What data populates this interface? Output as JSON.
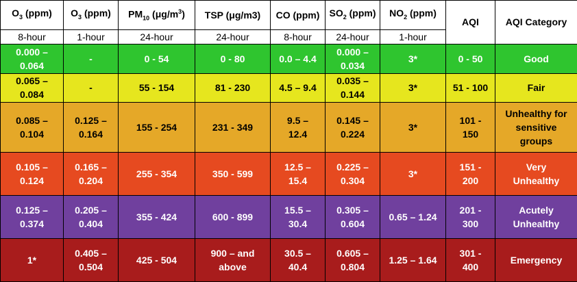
{
  "colors": {
    "good": "#2fc52f",
    "fair": "#e6e61e",
    "sensitive": "#e5a828",
    "very_unhealthy": "#e64a20",
    "acutely_unhealthy": "#70409e",
    "emergency": "#a81c1c"
  },
  "table": {
    "headers": [
      {
        "base": "O",
        "sub": "3",
        "sup": "",
        "rest": " (ppm)"
      },
      {
        "base": "O",
        "sub": "3",
        "sup": "",
        "rest": " (ppm)"
      },
      {
        "base": "PM",
        "sub": "10",
        "sup": "3",
        "rest": " (μg/m",
        "tail": ")"
      },
      {
        "base": "TSP (μg/m3)",
        "sub": "",
        "sup": "",
        "rest": ""
      },
      {
        "base": "CO (ppm)",
        "sub": "",
        "sup": "",
        "rest": ""
      },
      {
        "base": "SO",
        "sub": "2",
        "sup": "",
        "rest": " (ppm)"
      },
      {
        "base": "NO",
        "sub": "2",
        "sup": "",
        "rest": " (ppm)"
      },
      {
        "base": "AQI",
        "sub": "",
        "sup": "",
        "rest": ""
      },
      {
        "base": "AQI Category",
        "sub": "",
        "sup": "",
        "rest": ""
      }
    ],
    "averaging": [
      "8-hour",
      "1-hour",
      "24-hour",
      "24-hour",
      "8-hour",
      "24-hour",
      "1-hour"
    ],
    "rows": [
      {
        "color": "#2fc52f",
        "text_color": "#ffffff",
        "height": 42,
        "cells": [
          [
            "0.000 –",
            "0.064"
          ],
          [
            "-"
          ],
          [
            "0 - 54"
          ],
          [
            "0 - 80"
          ],
          [
            "0.0 – 4.4"
          ],
          [
            "0.000 –",
            "0.034"
          ],
          [
            "3*"
          ],
          [
            "0 - 50"
          ],
          [
            "Good"
          ]
        ]
      },
      {
        "color": "#e6e61e",
        "text_color": "#000000",
        "height": 42,
        "cells": [
          [
            "0.065 –",
            "0.084"
          ],
          [
            "-"
          ],
          [
            "55 - 154"
          ],
          [
            "81 - 230"
          ],
          [
            "4.5 – 9.4"
          ],
          [
            "0.035 –",
            "0.144"
          ],
          [
            "3*"
          ],
          [
            "51 - 100"
          ],
          [
            "Fair"
          ]
        ]
      },
      {
        "color": "#e5a828",
        "text_color": "#000000",
        "height": 72,
        "cells": [
          [
            "0.085 –",
            "0.104"
          ],
          [
            "0.125 –",
            "0.164"
          ],
          [
            "155 - 254"
          ],
          [
            "231 - 349"
          ],
          [
            "9.5 –",
            "12.4"
          ],
          [
            "0.145 –",
            "0.224"
          ],
          [
            "3*"
          ],
          [
            "101 -",
            "150"
          ],
          [
            "Unhealthy for",
            "sensitive",
            "groups"
          ]
        ]
      },
      {
        "color": "#e64a20",
        "text_color": "#ffffff",
        "height": 62,
        "cells": [
          [
            "0.105 –",
            "0.124"
          ],
          [
            "0.165 –",
            "0.204"
          ],
          [
            "255 - 354"
          ],
          [
            "350 - 599"
          ],
          [
            "12.5 –",
            "15.4"
          ],
          [
            "0.225 –",
            "0.304"
          ],
          [
            "3*"
          ],
          [
            "151 -",
            "200"
          ],
          [
            "Very",
            "Unhealthy"
          ]
        ]
      },
      {
        "color": "#70409e",
        "text_color": "#ffffff",
        "height": 62,
        "cells": [
          [
            "0.125 –",
            "0.374"
          ],
          [
            "0.205 –",
            "0.404"
          ],
          [
            "355 - 424"
          ],
          [
            "600 - 899"
          ],
          [
            "15.5 –",
            "30.4"
          ],
          [
            "0.305 –",
            "0.604"
          ],
          [
            "0.65 – 1.24"
          ],
          [
            "201 -",
            "300"
          ],
          [
            "Acutely",
            "Unhealthy"
          ]
        ]
      },
      {
        "color": "#a81c1c",
        "text_color": "#ffffff",
        "height": 62,
        "cells": [
          [
            "1*"
          ],
          [
            "0.405 –",
            "0.504"
          ],
          [
            "425 - 504"
          ],
          [
            "900 – and",
            "above"
          ],
          [
            "30.5 –",
            "40.4"
          ],
          [
            "0.605 –",
            "0.804"
          ],
          [
            "1.25 – 1.64"
          ],
          [
            "301 -",
            "400"
          ],
          [
            "Emergency"
          ]
        ]
      }
    ]
  }
}
